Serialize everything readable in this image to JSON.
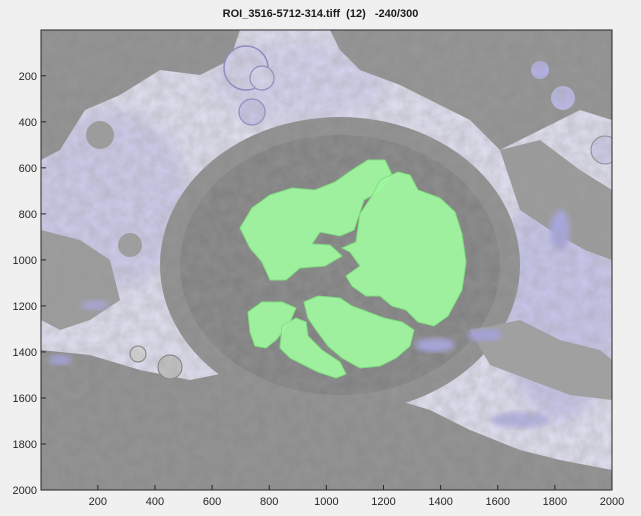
{
  "figure": {
    "title": "ROI_3516-5712-314.tiff  (12)   -240/300"
  },
  "axes": {
    "x_ticks": [
      "200",
      "400",
      "600",
      "800",
      "1000",
      "1200",
      "1400",
      "1600",
      "1800",
      "2000"
    ],
    "y_ticks": [
      "200",
      "400",
      "600",
      "800",
      "1000",
      "1200",
      "1400",
      "1600",
      "1800",
      "2000"
    ],
    "xlim": [
      1,
      2000
    ],
    "ylim": [
      1,
      2000
    ]
  },
  "image": {
    "description_colors": {
      "tissue": "#8a8a8a",
      "lumen": "#dcdcf2",
      "lumen_accent": "#a8a6e6",
      "overlay": "#9cf59c"
    }
  }
}
